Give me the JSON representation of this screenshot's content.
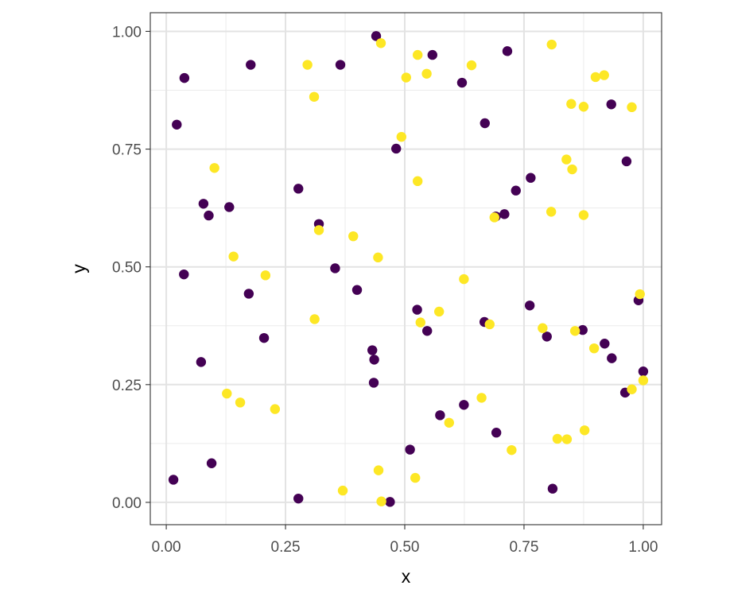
{
  "chart_data": {
    "type": "scatter",
    "title": "",
    "xlabel": "x",
    "ylabel": "y",
    "xlim": [
      -0.0335,
      1.0385
    ],
    "ylim": [
      -0.0474,
      1.0396
    ],
    "grid": true,
    "legend": "none",
    "x_ticks": [
      0.0,
      0.25,
      0.5,
      0.75,
      1.0
    ],
    "x_tick_labels": [
      "0.00",
      "0.25",
      "0.50",
      "0.75",
      "1.00"
    ],
    "y_ticks": [
      0.0,
      0.25,
      0.5,
      0.75,
      1.0
    ],
    "y_tick_labels": [
      "0.00",
      "0.25",
      "0.50",
      "0.75",
      "1.00"
    ],
    "colors": {
      "group_a": "#440154",
      "group_b": "#fde725"
    },
    "series": [
      {
        "color": "#440154",
        "points": [
          [
            0.44,
            0.99
          ],
          [
            0.038,
            0.901
          ],
          [
            0.177,
            0.929
          ],
          [
            0.365,
            0.929
          ],
          [
            0.558,
            0.95
          ],
          [
            0.715,
            0.958
          ],
          [
            0.62,
            0.891
          ],
          [
            0.022,
            0.802
          ],
          [
            0.668,
            0.805
          ],
          [
            0.933,
            0.845
          ],
          [
            0.482,
            0.751
          ],
          [
            0.965,
            0.724
          ],
          [
            0.277,
            0.666
          ],
          [
            0.764,
            0.689
          ],
          [
            0.733,
            0.662
          ],
          [
            0.078,
            0.634
          ],
          [
            0.089,
            0.609
          ],
          [
            0.132,
            0.627
          ],
          [
            0.32,
            0.591
          ],
          [
            0.691,
            0.607
          ],
          [
            0.709,
            0.612
          ],
          [
            0.354,
            0.497
          ],
          [
            0.037,
            0.484
          ],
          [
            0.4,
            0.451
          ],
          [
            0.173,
            0.443
          ],
          [
            0.762,
            0.418
          ],
          [
            0.526,
            0.409
          ],
          [
            0.99,
            0.429
          ],
          [
            0.667,
            0.383
          ],
          [
            0.547,
            0.364
          ],
          [
            0.873,
            0.366
          ],
          [
            0.798,
            0.352
          ],
          [
            0.205,
            0.349
          ],
          [
            0.432,
            0.323
          ],
          [
            0.919,
            0.337
          ],
          [
            0.436,
            0.303
          ],
          [
            0.934,
            0.306
          ],
          [
            0.073,
            0.298
          ],
          [
            0.435,
            0.254
          ],
          [
            1.0,
            0.278
          ],
          [
            0.962,
            0.233
          ],
          [
            0.624,
            0.207
          ],
          [
            0.574,
            0.185
          ],
          [
            0.692,
            0.148
          ],
          [
            0.511,
            0.112
          ],
          [
            0.095,
            0.083
          ],
          [
            0.015,
            0.048
          ],
          [
            0.81,
            0.029
          ],
          [
            0.277,
            0.008
          ],
          [
            0.469,
            0.001
          ]
        ]
      },
      {
        "color": "#fde725",
        "points": [
          [
            0.45,
            0.975
          ],
          [
            0.296,
            0.929
          ],
          [
            0.527,
            0.95
          ],
          [
            0.64,
            0.928
          ],
          [
            0.808,
            0.972
          ],
          [
            0.503,
            0.902
          ],
          [
            0.546,
            0.91
          ],
          [
            0.9,
            0.903
          ],
          [
            0.918,
            0.907
          ],
          [
            0.31,
            0.861
          ],
          [
            0.849,
            0.846
          ],
          [
            0.875,
            0.84
          ],
          [
            0.976,
            0.839
          ],
          [
            0.493,
            0.776
          ],
          [
            0.839,
            0.728
          ],
          [
            0.851,
            0.707
          ],
          [
            0.101,
            0.71
          ],
          [
            0.527,
            0.682
          ],
          [
            0.807,
            0.617
          ],
          [
            0.875,
            0.61
          ],
          [
            0.688,
            0.605
          ],
          [
            0.32,
            0.578
          ],
          [
            0.392,
            0.565
          ],
          [
            0.141,
            0.522
          ],
          [
            0.444,
            0.52
          ],
          [
            0.208,
            0.482
          ],
          [
            0.624,
            0.474
          ],
          [
            0.993,
            0.442
          ],
          [
            0.572,
            0.405
          ],
          [
            0.311,
            0.389
          ],
          [
            0.533,
            0.382
          ],
          [
            0.678,
            0.378
          ],
          [
            0.789,
            0.37
          ],
          [
            0.857,
            0.364
          ],
          [
            0.897,
            0.327
          ],
          [
            0.976,
            0.24
          ],
          [
            1.0,
            0.259
          ],
          [
            0.127,
            0.231
          ],
          [
            0.155,
            0.212
          ],
          [
            0.228,
            0.198
          ],
          [
            0.661,
            0.222
          ],
          [
            0.593,
            0.169
          ],
          [
            0.877,
            0.153
          ],
          [
            0.82,
            0.135
          ],
          [
            0.84,
            0.134
          ],
          [
            0.724,
            0.111
          ],
          [
            0.445,
            0.068
          ],
          [
            0.522,
            0.052
          ],
          [
            0.37,
            0.025
          ],
          [
            0.451,
            0.002
          ]
        ]
      }
    ]
  }
}
